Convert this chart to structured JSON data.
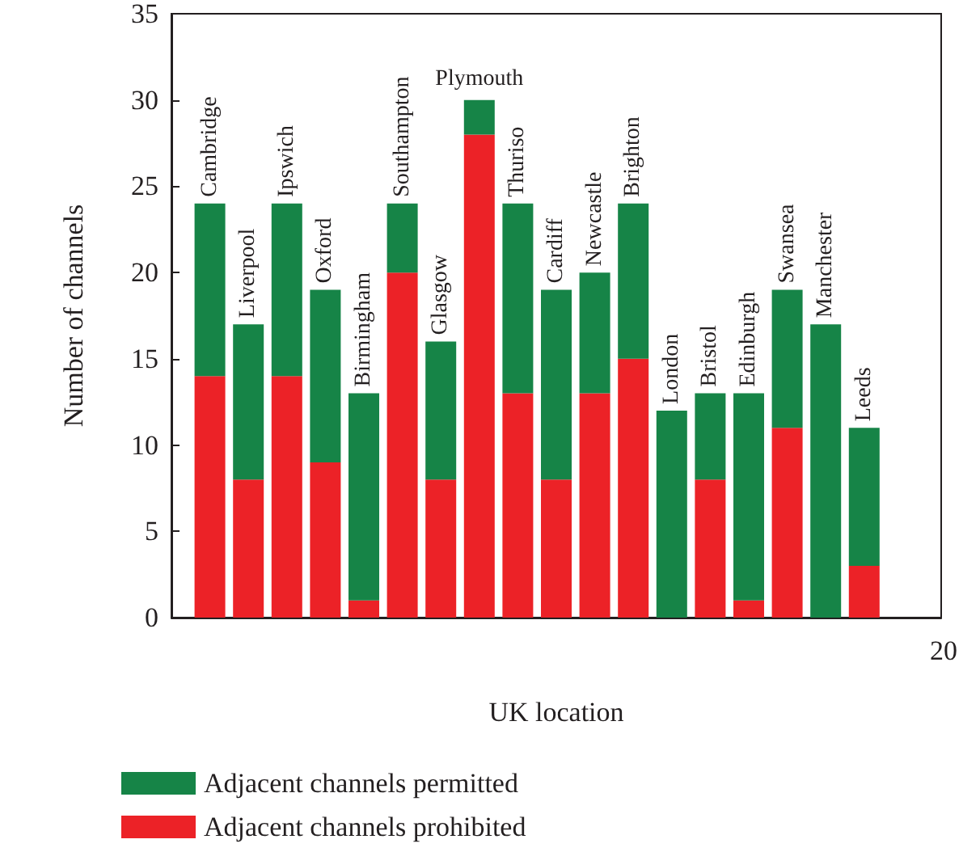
{
  "chart_data": {
    "type": "bar",
    "stacked": true,
    "xlabel": "UK location",
    "ylabel": "Number of channels",
    "categories": [
      "Cambridge",
      "Liverpool",
      "Ipswich",
      "Oxford",
      "Birmingham",
      "Southampton",
      "Glasgow",
      "Plymouth",
      "Thuriso",
      "Cardiff",
      "Newcastle",
      "Brighton",
      "London",
      "Bristol",
      "Edinburgh",
      "Swansea",
      "Manchester",
      "Leeds"
    ],
    "series": [
      {
        "name": "Adjacent channels prohibited",
        "color": "#ec2227",
        "values": [
          14,
          8,
          14,
          9,
          1,
          20,
          8,
          28,
          13,
          8,
          13,
          15,
          0,
          8,
          1,
          11,
          0,
          3
        ]
      },
      {
        "name": "Adjacent channels permitted",
        "color": "#168447",
        "values": [
          10,
          9,
          10,
          10,
          12,
          4,
          8,
          2,
          11,
          11,
          7,
          9,
          12,
          5,
          12,
          8,
          17,
          8
        ]
      }
    ],
    "annotations": [
      "20"
    ],
    "ylim": [
      0,
      35
    ],
    "yticks": [
      0,
      5,
      10,
      15,
      20,
      25,
      30,
      35
    ],
    "grid": false,
    "legend": "bottom"
  }
}
